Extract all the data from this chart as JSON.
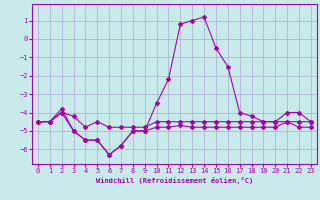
{
  "xlabel": "Windchill (Refroidissement éolien,°C)",
  "bg_color": "#c8eaea",
  "line_color": "#aa00aa",
  "grid_color": "#aaaacc",
  "xlim": [
    -0.5,
    23.5
  ],
  "ylim": [
    -6.8,
    1.9
  ],
  "yticks": [
    1,
    0,
    -1,
    -2,
    -3,
    -4,
    -5,
    -6
  ],
  "xticks": [
    0,
    1,
    2,
    3,
    4,
    5,
    6,
    7,
    8,
    9,
    10,
    11,
    12,
    13,
    14,
    15,
    16,
    17,
    18,
    19,
    20,
    21,
    22,
    23
  ],
  "ya": [
    -4.5,
    -4.5,
    -4.0,
    -4.2,
    -4.8,
    -4.5,
    -4.8,
    -4.8,
    -4.8,
    -4.8,
    -4.5,
    -4.5,
    -4.5,
    -4.5,
    -4.5,
    -4.5,
    -4.5,
    -4.5,
    -4.5,
    -4.5,
    -4.5,
    -4.5,
    -4.5,
    -4.5
  ],
  "yb": [
    -4.5,
    -4.5,
    -3.8,
    -5.0,
    -5.5,
    -5.5,
    -6.3,
    -5.8,
    -5.0,
    -5.0,
    -4.8,
    -4.8,
    -4.7,
    -4.8,
    -4.8,
    -4.8,
    -4.8,
    -4.8,
    -4.8,
    -4.8,
    -4.8,
    -4.5,
    -4.8,
    -4.8
  ],
  "yc": [
    -4.5,
    -4.5,
    -4.0,
    -5.0,
    -5.5,
    -5.5,
    -6.3,
    -5.8,
    -5.0,
    -5.0,
    -3.5,
    -2.2,
    0.8,
    1.0,
    1.2,
    -0.5,
    -1.5,
    -4.0,
    -4.2,
    -4.5,
    -4.5,
    -4.0,
    -4.0,
    -4.5
  ],
  "xlabel_fontsize": 5.0,
  "tick_fontsize": 5.0
}
